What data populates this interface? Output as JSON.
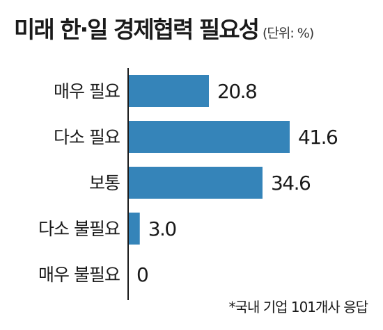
{
  "header": {
    "title": "미래 한·일 경제협력 필요성",
    "unit": "(단위: %)"
  },
  "footnote": "*국내 기업 101개사 응답",
  "colors": {
    "bar": "#3584b9",
    "axis": "#1a1a1a"
  },
  "chart_data": {
    "type": "bar",
    "orientation": "horizontal",
    "title": "미래 한·일 경제협력 필요성",
    "unit": "%",
    "categories": [
      "매우 필요",
      "다소 필요",
      "보통",
      "다소 불필요",
      "매우 불필요"
    ],
    "values": [
      20.8,
      41.6,
      34.6,
      3.0,
      0
    ],
    "value_labels": [
      "20.8",
      "41.6",
      "34.6",
      "3.0",
      "0"
    ],
    "xlim": [
      0,
      45
    ],
    "grid": false,
    "legend": "none"
  }
}
